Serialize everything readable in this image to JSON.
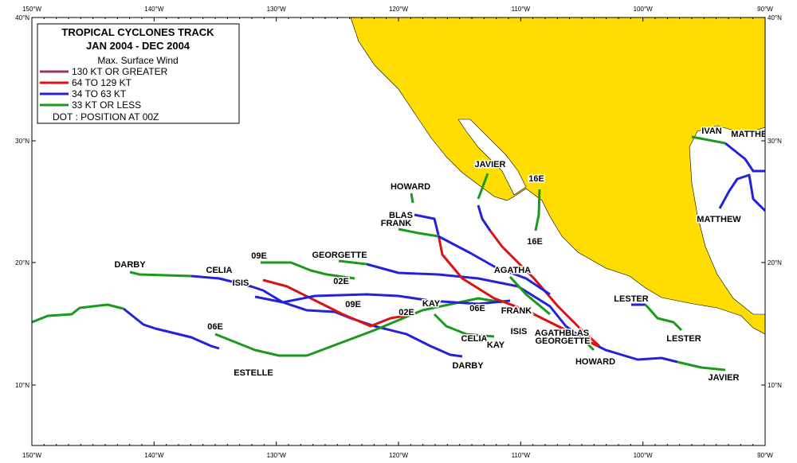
{
  "legend": {
    "title": "TROPICAL CYCLONES TRACK",
    "period": "JAN 2004  -  DEC 2004",
    "subtitle": "Max. Surface Wind",
    "entries": [
      {
        "label": "130 KT OR GREATER",
        "color": "#993366"
      },
      {
        "label": "64 TO 129 KT",
        "color": "#dd1111"
      },
      {
        "label": "34 TO 63 KT",
        "color": "#2222dd"
      },
      {
        "label": "33 KT OR LESS",
        "color": "#1a9a1a"
      }
    ],
    "note": "DOT : POSITION AT 00Z"
  },
  "axes": {
    "longitudes": [
      "150°W",
      "140°W",
      "130°W",
      "120°W",
      "110°W",
      "100°W",
      "90°W"
    ],
    "latitudes": [
      "10°N",
      "20°N",
      "30°N",
      "40°N"
    ]
  },
  "storm_labels": [
    "GEORGETTE",
    "DARBY",
    "CELIA",
    "09E",
    "ISIS",
    "02E",
    "09E",
    "KAY",
    "02E",
    "06E",
    "FRANK",
    "ISIS",
    "AGATHA",
    "AGATHBLAS",
    "GEORGETTE",
    "HOWARD",
    "CELIA",
    "KAY",
    "DARBY",
    "06E",
    "ESTELLE",
    "HOWARD",
    "BLAS",
    "FRANK",
    "JAVIER",
    "16E",
    "16E",
    "IVAN",
    "MATTHEW",
    "MATTHEW",
    "LESTER",
    "LESTER",
    "JAVIER"
  ]
}
